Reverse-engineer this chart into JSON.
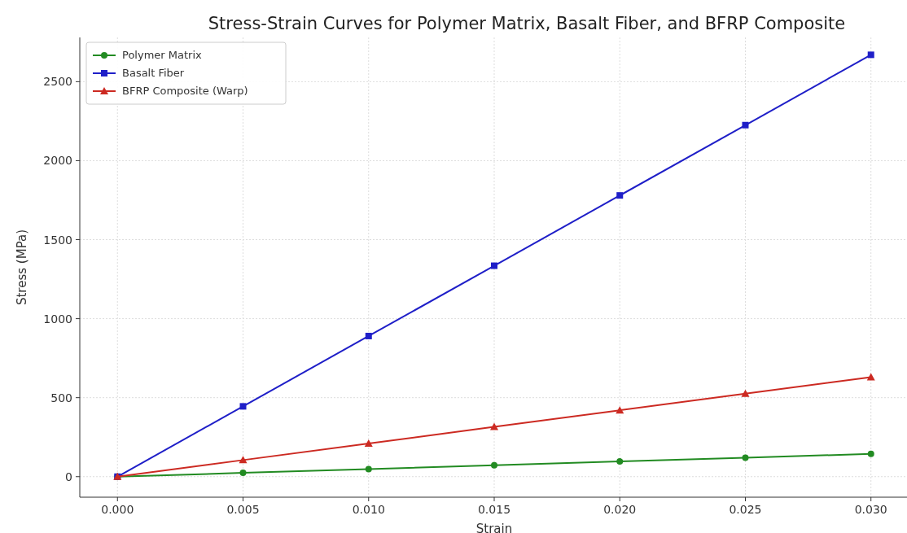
{
  "chart_data": {
    "type": "line",
    "title": "Stress-Strain Curves for Polymer Matrix, Basalt Fiber, and BFRP Composite",
    "xlabel": "Strain",
    "ylabel": "Stress (MPa)",
    "x": [
      0,
      0.005,
      0.01,
      0.015,
      0.02,
      0.025,
      0.03
    ],
    "series": [
      {
        "name": "Polymer Matrix",
        "color": "#228b22",
        "marker": "circle",
        "values": [
          0,
          24,
          48,
          72,
          96,
          120,
          144
        ]
      },
      {
        "name": "Basalt Fiber",
        "color": "#1f1fc8",
        "marker": "square",
        "values": [
          0,
          445,
          890,
          1335,
          1780,
          2225,
          2670
        ]
      },
      {
        "name": "BFRP Composite (Warp)",
        "color": "#cc2a22",
        "marker": "triangle",
        "values": [
          0,
          105,
          210,
          315,
          420,
          525,
          630
        ]
      }
    ],
    "xlim": [
      -0.0015,
      0.0315
    ],
    "ylim": [
      -130,
      2780
    ],
    "xticks": [
      {
        "value": 0,
        "label": "0.000"
      },
      {
        "value": 0.005,
        "label": "0.005"
      },
      {
        "value": 0.01,
        "label": "0.010"
      },
      {
        "value": 0.015,
        "label": "0.015"
      },
      {
        "value": 0.02,
        "label": "0.020"
      },
      {
        "value": 0.025,
        "label": "0.025"
      },
      {
        "value": 0.03,
        "label": "0.030"
      }
    ],
    "yticks": [
      0,
      500,
      1000,
      1500,
      2000,
      2500
    ],
    "grid": true,
    "legend": "top left"
  }
}
